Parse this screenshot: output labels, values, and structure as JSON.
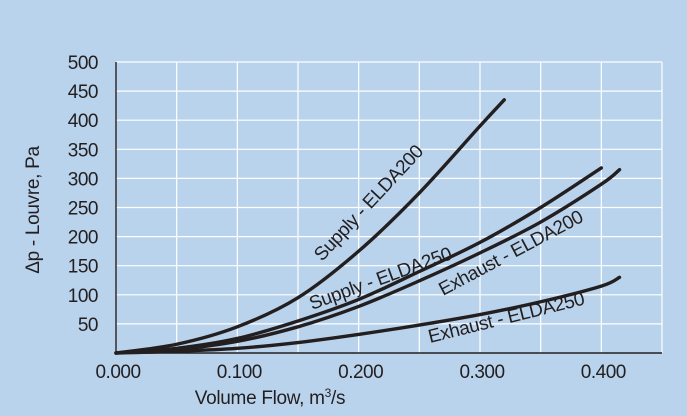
{
  "chart_data": {
    "type": "line",
    "xlabel": "Volume Flow, m",
    "xlabel_sup": "3",
    "xlabel_suffix": "/s",
    "ylabel": "Δp - Louvre, Pa",
    "xlim": [
      0.0,
      0.45
    ],
    "ylim": [
      0,
      500
    ],
    "x_ticks": [
      0.0,
      0.1,
      0.2,
      0.3,
      0.4
    ],
    "x_tick_labels": [
      "0.000",
      "0.100",
      "0.200",
      "0.300",
      "0.400"
    ],
    "y_ticks": [
      50,
      100,
      150,
      200,
      250,
      300,
      350,
      400,
      450,
      500
    ],
    "y_tick_labels": [
      "50",
      "100",
      "150",
      "200",
      "250",
      "300",
      "350",
      "400",
      "450",
      "500"
    ],
    "grid": true,
    "background_color": "#b9d3ec",
    "plot_background_color": "#b9d3ec",
    "grid_color": "#ffffff",
    "line_color": "#231f20",
    "series": [
      {
        "name": "Supply - ELDA200",
        "x": [
          0.0,
          0.05,
          0.1,
          0.15,
          0.2,
          0.25,
          0.3,
          0.32
        ],
        "y": [
          0,
          15,
          45,
          95,
          175,
          275,
          390,
          435
        ]
      },
      {
        "name": "Supply - ELDA250",
        "x": [
          0.0,
          0.05,
          0.1,
          0.15,
          0.2,
          0.25,
          0.3,
          0.35,
          0.4
        ],
        "y": [
          0,
          8,
          25,
          55,
          92,
          140,
          190,
          250,
          318
        ]
      },
      {
        "name": "Exhaust - ELDA200",
        "x": [
          0.0,
          0.05,
          0.1,
          0.15,
          0.2,
          0.25,
          0.3,
          0.35,
          0.4,
          0.415
        ],
        "y": [
          0,
          6,
          20,
          45,
          80,
          124,
          172,
          225,
          290,
          315
        ]
      },
      {
        "name": "Exhaust - ELDA250",
        "x": [
          0.0,
          0.05,
          0.1,
          0.15,
          0.2,
          0.25,
          0.3,
          0.35,
          0.4,
          0.415
        ],
        "y": [
          0,
          3,
          8,
          18,
          32,
          48,
          66,
          88,
          115,
          130
        ]
      }
    ]
  }
}
